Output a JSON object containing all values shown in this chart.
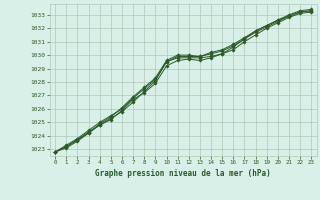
{
  "title": "Graphe pression niveau de la mer (hPa)",
  "bg_color": "#d8f0e8",
  "grid_color": "#b0c8b8",
  "line_color": "#2d5a27",
  "marker_color": "#2d5a27",
  "xlim": [
    -0.5,
    23.5
  ],
  "ylim": [
    1022.5,
    1033.8
  ],
  "yticks": [
    1023,
    1024,
    1025,
    1026,
    1027,
    1028,
    1029,
    1030,
    1031,
    1032,
    1033
  ],
  "xticks": [
    0,
    1,
    2,
    3,
    4,
    5,
    6,
    7,
    8,
    9,
    10,
    11,
    12,
    13,
    14,
    15,
    16,
    17,
    18,
    19,
    20,
    21,
    22,
    23
  ],
  "series": [
    [
      1022.8,
      1023.1,
      1023.6,
      1024.2,
      1024.8,
      1025.3,
      1025.8,
      1026.5,
      1027.3,
      1028.1,
      1029.5,
      1029.8,
      1029.8,
      1029.8,
      1029.9,
      1030.1,
      1030.4,
      1031.0,
      1031.5,
      1032.0,
      1032.4,
      1032.8,
      1033.1,
      1033.2
    ],
    [
      1022.8,
      1023.2,
      1023.7,
      1024.3,
      1024.8,
      1025.2,
      1025.9,
      1026.7,
      1027.2,
      1027.9,
      1029.2,
      1029.6,
      1029.7,
      1029.6,
      1029.8,
      1030.1,
      1030.6,
      1031.2,
      1031.8,
      1032.2,
      1032.6,
      1032.9,
      1033.2,
      1033.3
    ],
    [
      1022.8,
      1023.3,
      1023.8,
      1024.4,
      1025.0,
      1025.5,
      1026.0,
      1026.8,
      1027.5,
      1028.2,
      1029.5,
      1029.9,
      1029.9,
      1029.9,
      1030.1,
      1030.3,
      1030.7,
      1031.2,
      1031.7,
      1032.1,
      1032.5,
      1032.9,
      1033.2,
      1033.3
    ],
    [
      1022.8,
      1023.2,
      1023.7,
      1024.2,
      1024.9,
      1025.4,
      1026.1,
      1026.9,
      1027.6,
      1028.3,
      1029.6,
      1030.0,
      1030.0,
      1029.9,
      1030.2,
      1030.4,
      1030.8,
      1031.3,
      1031.8,
      1032.2,
      1032.6,
      1033.0,
      1033.3,
      1033.4
    ]
  ]
}
